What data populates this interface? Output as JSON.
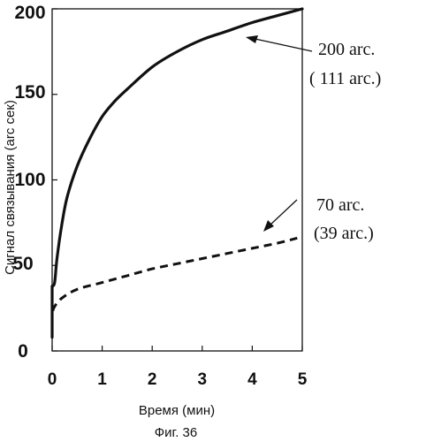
{
  "chart_data": {
    "type": "line",
    "xlabel": "Время (мин)",
    "ylabel": "Сигнал связывания (arc сек)",
    "caption": "Фиг. 36",
    "xlim": [
      0,
      5
    ],
    "ylim": [
      0,
      200
    ],
    "x_ticks": [
      "0",
      "1",
      "2",
      "3",
      "4",
      "5"
    ],
    "y_ticks": [
      "0",
      "50",
      "100",
      "150",
      "200"
    ],
    "grid": false,
    "series": [
      {
        "style": "solid",
        "x": [
          0,
          0.05,
          0.1,
          0.2,
          0.3,
          0.5,
          0.75,
          1.0,
          1.25,
          1.5,
          2.0,
          2.5,
          3.0,
          3.5,
          4.0,
          4.5,
          5.0
        ],
        "y": [
          38,
          40,
          55,
          75,
          90,
          108,
          124,
          137,
          146,
          153,
          166,
          175,
          182,
          187,
          192,
          196,
          200
        ]
      },
      {
        "style": "dashed",
        "x": [
          0,
          0.05,
          0.2,
          0.5,
          1.0,
          1.5,
          2.0,
          2.5,
          3.0,
          3.5,
          4.0,
          4.5,
          4.9
        ],
        "y": [
          22,
          26,
          31,
          36,
          40,
          44,
          48,
          51,
          54,
          57,
          60,
          63,
          66
        ]
      }
    ],
    "annotations": [
      {
        "line1": "200 arc.",
        "line2": "( 111 arc.)",
        "target_series": 0
      },
      {
        "line1": "70 arc.",
        "line2": "(39 arc.)",
        "target_series": 1
      }
    ]
  }
}
